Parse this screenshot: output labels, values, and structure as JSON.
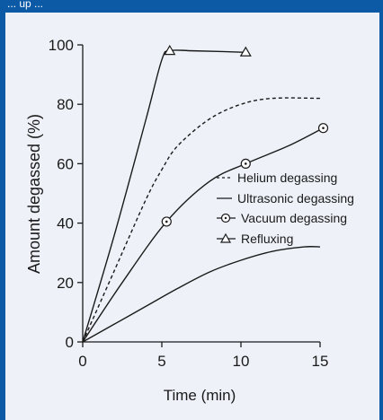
{
  "header": {
    "caption": "... up ... "
  },
  "colors": {
    "band": "#0c5aa6",
    "panel": "#eef2f8",
    "ink": "#1a1a1a"
  },
  "chart_data": {
    "type": "line",
    "title": "",
    "xlabel": "Time (min)",
    "ylabel": "Amount degassed (%)",
    "xlim": [
      0,
      15
    ],
    "ylim": [
      0,
      100
    ],
    "xticks": [
      0,
      5,
      10,
      15
    ],
    "yticks": [
      0,
      20,
      40,
      60,
      80,
      100
    ],
    "grid": false,
    "legend_position": "right-middle",
    "series": [
      {
        "name": "Helium degassing",
        "style": "dashed",
        "marker": "none",
        "x": [
          0,
          2,
          4,
          5,
          6,
          8,
          10,
          12,
          15
        ],
        "y": [
          0,
          24,
          48,
          58,
          66,
          75,
          80,
          82,
          82
        ]
      },
      {
        "name": "Ultrasonic degassing",
        "style": "solid",
        "marker": "none",
        "x": [
          0,
          2,
          4,
          6,
          8,
          10,
          12,
          14,
          15
        ],
        "y": [
          0,
          6,
          12,
          18,
          23.5,
          27.5,
          30.5,
          32,
          32
        ]
      },
      {
        "name": "Vacuum degassing",
        "style": "solid",
        "marker": "circle-dot",
        "x": [
          0,
          2.5,
          5.3,
          8,
          10.3,
          13,
          15.2
        ],
        "y": [
          0,
          20,
          40.5,
          54,
          60,
          66,
          72
        ]
      },
      {
        "name": "Refluxing",
        "style": "solid",
        "marker": "triangle",
        "x": [
          0,
          2,
          4,
          5,
          5.5,
          7,
          10.3
        ],
        "y": [
          0,
          36,
          75,
          95,
          98,
          98,
          97.5
        ]
      }
    ],
    "marker_points": [
      {
        "series": 2,
        "x": 5.3,
        "y": 40.5
      },
      {
        "series": 2,
        "x": 10.3,
        "y": 60
      },
      {
        "series": 2,
        "x": 15.2,
        "y": 72
      },
      {
        "series": 3,
        "x": 5.5,
        "y": 98
      },
      {
        "series": 3,
        "x": 10.3,
        "y": 97.5
      }
    ]
  }
}
